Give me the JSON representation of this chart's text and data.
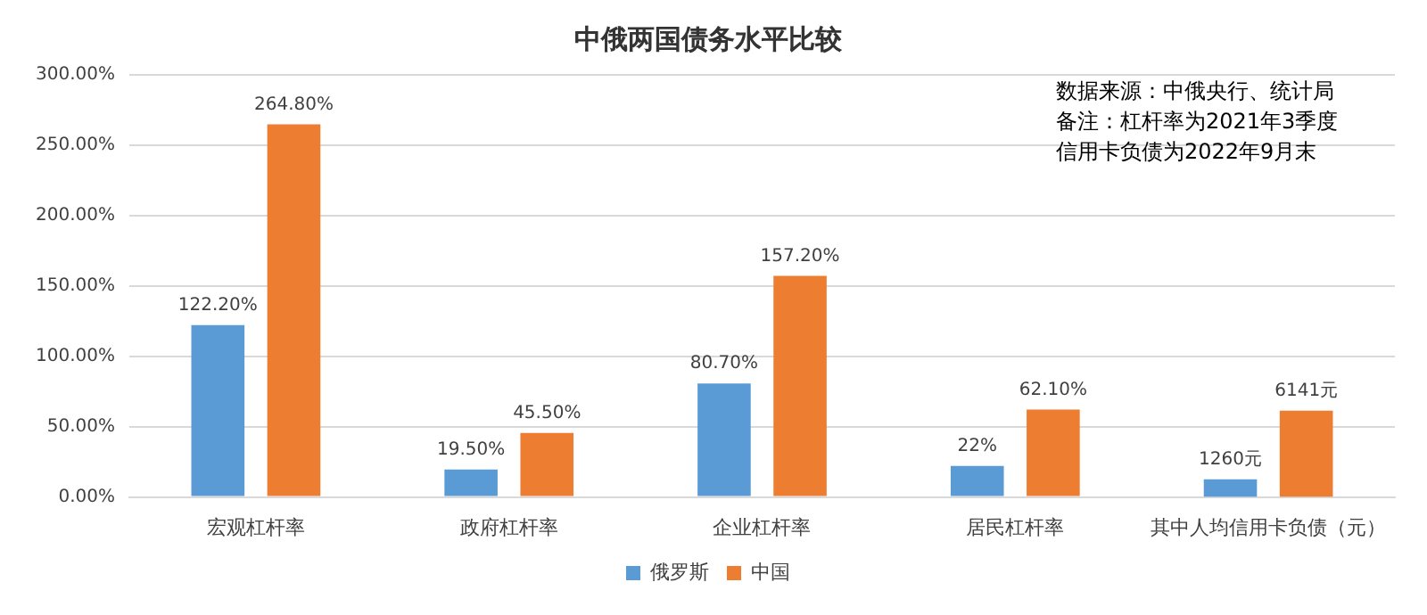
{
  "chart_data": {
    "type": "bar",
    "title": "中俄两国债务水平比较",
    "categories": [
      "宏观杠杆率",
      "政府杠杆率",
      "企业杠杆率",
      "居民杠杆率",
      "其中人均信用卡负债（元）"
    ],
    "series": [
      {
        "name": "俄罗斯",
        "color": "#5b9bd5",
        "values": [
          122.2,
          19.5,
          80.7,
          22,
          null
        ],
        "value_labels": [
          "122.20%",
          "19.50%",
          "80.70%",
          "22%",
          null
        ]
      },
      {
        "color": "#5b9bd5",
        "axis": "y2",
        "values": [
          null,
          null,
          null,
          null,
          1260
        ],
        "value_labels": [
          null,
          null,
          null,
          null,
          "1260元"
        ]
      },
      {
        "name": "中国",
        "color": "#ed7d31",
        "values": [
          264.8,
          45.5,
          157.2,
          62.1,
          null
        ],
        "value_labels": [
          "264.80%",
          "45.50%",
          "157.20%",
          "62.10%",
          null
        ]
      },
      {
        "color": "#ed7d31",
        "axis": "y2",
        "values": [
          null,
          null,
          null,
          null,
          6141
        ],
        "value_labels": [
          null,
          null,
          null,
          null,
          "6141元"
        ]
      }
    ],
    "y2lim": [
      0,
      30000
    ],
    "ylim": [
      0,
      300
    ],
    "yticks": [
      {
        "value": 0,
        "label": "0.00%"
      },
      {
        "value": 50,
        "label": "50.00%"
      },
      {
        "value": 100,
        "label": "100.00%"
      },
      {
        "value": 150,
        "label": "150.00%"
      },
      {
        "value": 200,
        "label": "200.00%"
      },
      {
        "value": 250,
        "label": "250.00%"
      },
      {
        "value": 300,
        "label": "300.00%"
      }
    ],
    "grid": "y",
    "legend": "bottom",
    "annotations": [
      "数据来源：中俄央行、统计局",
      "备注：杠杆率为2021年3季度",
      "信用卡负债为2022年9月末"
    ]
  }
}
